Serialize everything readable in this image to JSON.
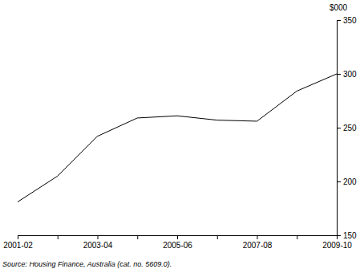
{
  "chart_data": {
    "type": "line",
    "categories": [
      "2001-02",
      null,
      "2003-04",
      null,
      "2005-06",
      null,
      "2007-08",
      null,
      "2009-10"
    ],
    "values": [
      181,
      205,
      242,
      259,
      261,
      257,
      256,
      284,
      300
    ],
    "color": "#000000",
    "ylim": [
      150,
      350
    ],
    "yticks": [
      150,
      200,
      250,
      300,
      350
    ],
    "y_label": "$000",
    "source": "Source: Housing Finance, Australia (cat. no. 5609.0).",
    "grid": false
  }
}
